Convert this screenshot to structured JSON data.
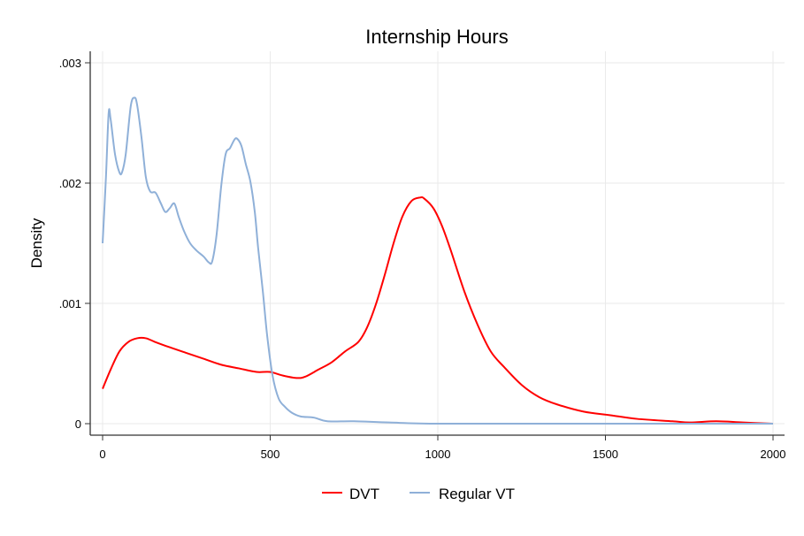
{
  "chart_data": {
    "type": "line",
    "title": "Internship Hours",
    "xlabel": "",
    "ylabel": "Density",
    "xlim": [
      0,
      2000
    ],
    "ylim": [
      0,
      0.003
    ],
    "xticks": [
      0,
      500,
      1000,
      1500,
      2000
    ],
    "xtick_labels": [
      "0",
      "500",
      "1000",
      "1500",
      "2000"
    ],
    "yticks": [
      0,
      0.001,
      0.002,
      0.003
    ],
    "ytick_labels": [
      "0",
      ".001",
      ".002",
      ".003"
    ],
    "grid": true,
    "legend_position": "bottom",
    "series": [
      {
        "name": "DVT",
        "color": "#ff0000",
        "x": [
          0,
          24,
          50,
          77,
          103,
          129,
          156,
          195,
          248,
          301,
          354,
          406,
          459,
          499,
          538,
          578,
          604,
          644,
          683,
          723,
          763,
          789,
          815,
          842,
          868,
          894,
          921,
          947,
          960,
          987,
          1013,
          1040,
          1079,
          1119,
          1158,
          1198,
          1251,
          1303,
          1356,
          1435,
          1515,
          1594,
          1700,
          1752,
          1831,
          1910,
          2000
        ],
        "y": [
          0.00029,
          0.00045,
          0.0006,
          0.00068,
          0.00071,
          0.00071,
          0.00068,
          0.00064,
          0.00059,
          0.00054,
          0.00049,
          0.00046,
          0.00043,
          0.00043,
          0.0004,
          0.00038,
          0.00039,
          0.00045,
          0.00051,
          0.0006,
          0.00068,
          0.0008,
          0.00099,
          0.00124,
          0.0015,
          0.00172,
          0.00185,
          0.00188,
          0.00187,
          0.00179,
          0.00164,
          0.00143,
          0.0011,
          0.00082,
          0.0006,
          0.00047,
          0.00032,
          0.00022,
          0.00016,
          0.0001,
          7e-05,
          4e-05,
          2e-05,
          1e-05,
          2e-05,
          1e-05,
          0
        ]
      },
      {
        "name": "Regular VT",
        "color": "#8fb0d8",
        "x": [
          0,
          10,
          18,
          24,
          37,
          50,
          58,
          69,
          84,
          95,
          103,
          116,
          129,
          142,
          158,
          174,
          187,
          200,
          214,
          227,
          243,
          261,
          280,
          301,
          317,
          327,
          340,
          354,
          367,
          380,
          393,
          401,
          414,
          427,
          441,
          454,
          464,
          478,
          491,
          507,
          525,
          544,
          565,
          591,
          631,
          670,
          750,
          855,
          1013,
          1500,
          2000
        ],
        "y": [
          0.0015,
          0.00205,
          0.00258,
          0.00253,
          0.00224,
          0.00209,
          0.00209,
          0.00224,
          0.00264,
          0.00271,
          0.00265,
          0.00238,
          0.00205,
          0.00193,
          0.00192,
          0.00183,
          0.00176,
          0.00179,
          0.00183,
          0.00172,
          0.0016,
          0.0015,
          0.00144,
          0.00139,
          0.00134,
          0.00135,
          0.00157,
          0.00198,
          0.00224,
          0.00229,
          0.00236,
          0.00237,
          0.00231,
          0.00216,
          0.00201,
          0.00176,
          0.00146,
          0.0011,
          0.00073,
          0.0004,
          0.00021,
          0.00014,
          9e-05,
          6e-05,
          5e-05,
          2e-05,
          2e-05,
          1e-05,
          0,
          0,
          0
        ]
      }
    ]
  }
}
